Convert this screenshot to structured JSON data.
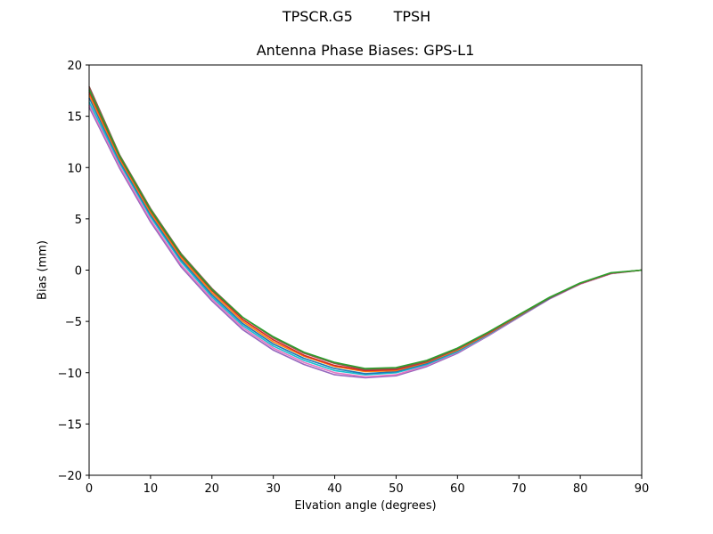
{
  "figure": {
    "suptitle": "TPSCR.G5         TPSH",
    "title": "Antenna Phase Biases: GPS-L1",
    "xlabel": "Elvation angle (degrees)",
    "ylabel": "Bias (mm)"
  },
  "chart_data": {
    "type": "line",
    "title": "Antenna Phase Biases: GPS-L1",
    "suptitle": "TPSCR.G5         TPSH",
    "xlabel": "Elvation angle (degrees)",
    "ylabel": "Bias (mm)",
    "xlim": [
      0,
      90
    ],
    "ylim": [
      -20,
      20
    ],
    "xticks": [
      0,
      10,
      20,
      30,
      40,
      50,
      60,
      70,
      80,
      90
    ],
    "yticks": [
      -20,
      -15,
      -10,
      -5,
      0,
      5,
      10,
      15,
      20
    ],
    "grid": false,
    "legend": null,
    "x": [
      0,
      5,
      10,
      15,
      20,
      25,
      30,
      35,
      40,
      45,
      50,
      55,
      60,
      65,
      70,
      75,
      80,
      85,
      90
    ],
    "series": [
      {
        "name": "curve-1",
        "color": "#9467bd",
        "values": [
          15.9,
          9.9,
          4.7,
          0.3,
          -3.0,
          -5.8,
          -7.8,
          -9.2,
          -10.2,
          -10.5,
          -10.3,
          -9.4,
          -8.1,
          -6.4,
          -4.6,
          -2.8,
          -1.35,
          -0.35,
          0
        ]
      },
      {
        "name": "curve-2",
        "color": "#e377c2",
        "values": [
          16.1,
          10.1,
          4.9,
          0.5,
          -2.8,
          -5.6,
          -7.6,
          -9.0,
          -10.0,
          -10.4,
          -10.2,
          -9.3,
          -8.0,
          -6.35,
          -4.55,
          -2.8,
          -1.35,
          -0.35,
          0
        ]
      },
      {
        "name": "curve-3",
        "color": "#17becf",
        "values": [
          16.4,
          10.4,
          5.2,
          0.8,
          -2.6,
          -5.4,
          -7.4,
          -8.8,
          -9.8,
          -10.2,
          -10.0,
          -9.2,
          -7.95,
          -6.3,
          -4.5,
          -2.75,
          -1.3,
          -0.3,
          0
        ]
      },
      {
        "name": "curve-4",
        "color": "#1f77b4",
        "values": [
          16.8,
          10.6,
          5.4,
          1.0,
          -2.4,
          -5.2,
          -7.2,
          -8.6,
          -9.6,
          -10.1,
          -9.9,
          -9.1,
          -7.85,
          -6.25,
          -4.5,
          -2.75,
          -1.3,
          -0.3,
          0
        ]
      },
      {
        "name": "curve-5",
        "color": "#ff7f0e",
        "values": [
          17.1,
          10.8,
          5.6,
          1.2,
          -2.2,
          -5.0,
          -7.0,
          -8.4,
          -9.4,
          -9.9,
          -9.8,
          -9.0,
          -7.8,
          -6.2,
          -4.45,
          -2.7,
          -1.3,
          -0.3,
          0
        ]
      },
      {
        "name": "curve-6",
        "color": "#d62728",
        "values": [
          17.4,
          11.0,
          5.8,
          1.4,
          -2.0,
          -4.8,
          -6.8,
          -8.3,
          -9.3,
          -9.8,
          -9.7,
          -8.95,
          -7.7,
          -6.15,
          -4.4,
          -2.7,
          -1.3,
          -0.3,
          0
        ]
      },
      {
        "name": "curve-7",
        "color": "#8c564b",
        "values": [
          17.9,
          11.2,
          6.0,
          1.6,
          -1.8,
          -4.6,
          -6.6,
          -8.1,
          -9.1,
          -9.7,
          -9.6,
          -8.9,
          -7.7,
          -6.1,
          -4.4,
          -2.7,
          -1.3,
          -0.3,
          0
        ]
      },
      {
        "name": "curve-8",
        "color": "#2ca02c",
        "values": [
          17.6,
          11.1,
          5.9,
          1.5,
          -1.9,
          -4.6,
          -6.5,
          -8.0,
          -9.0,
          -9.6,
          -9.5,
          -8.8,
          -7.6,
          -6.05,
          -4.35,
          -2.65,
          -1.25,
          -0.25,
          0
        ]
      }
    ]
  }
}
